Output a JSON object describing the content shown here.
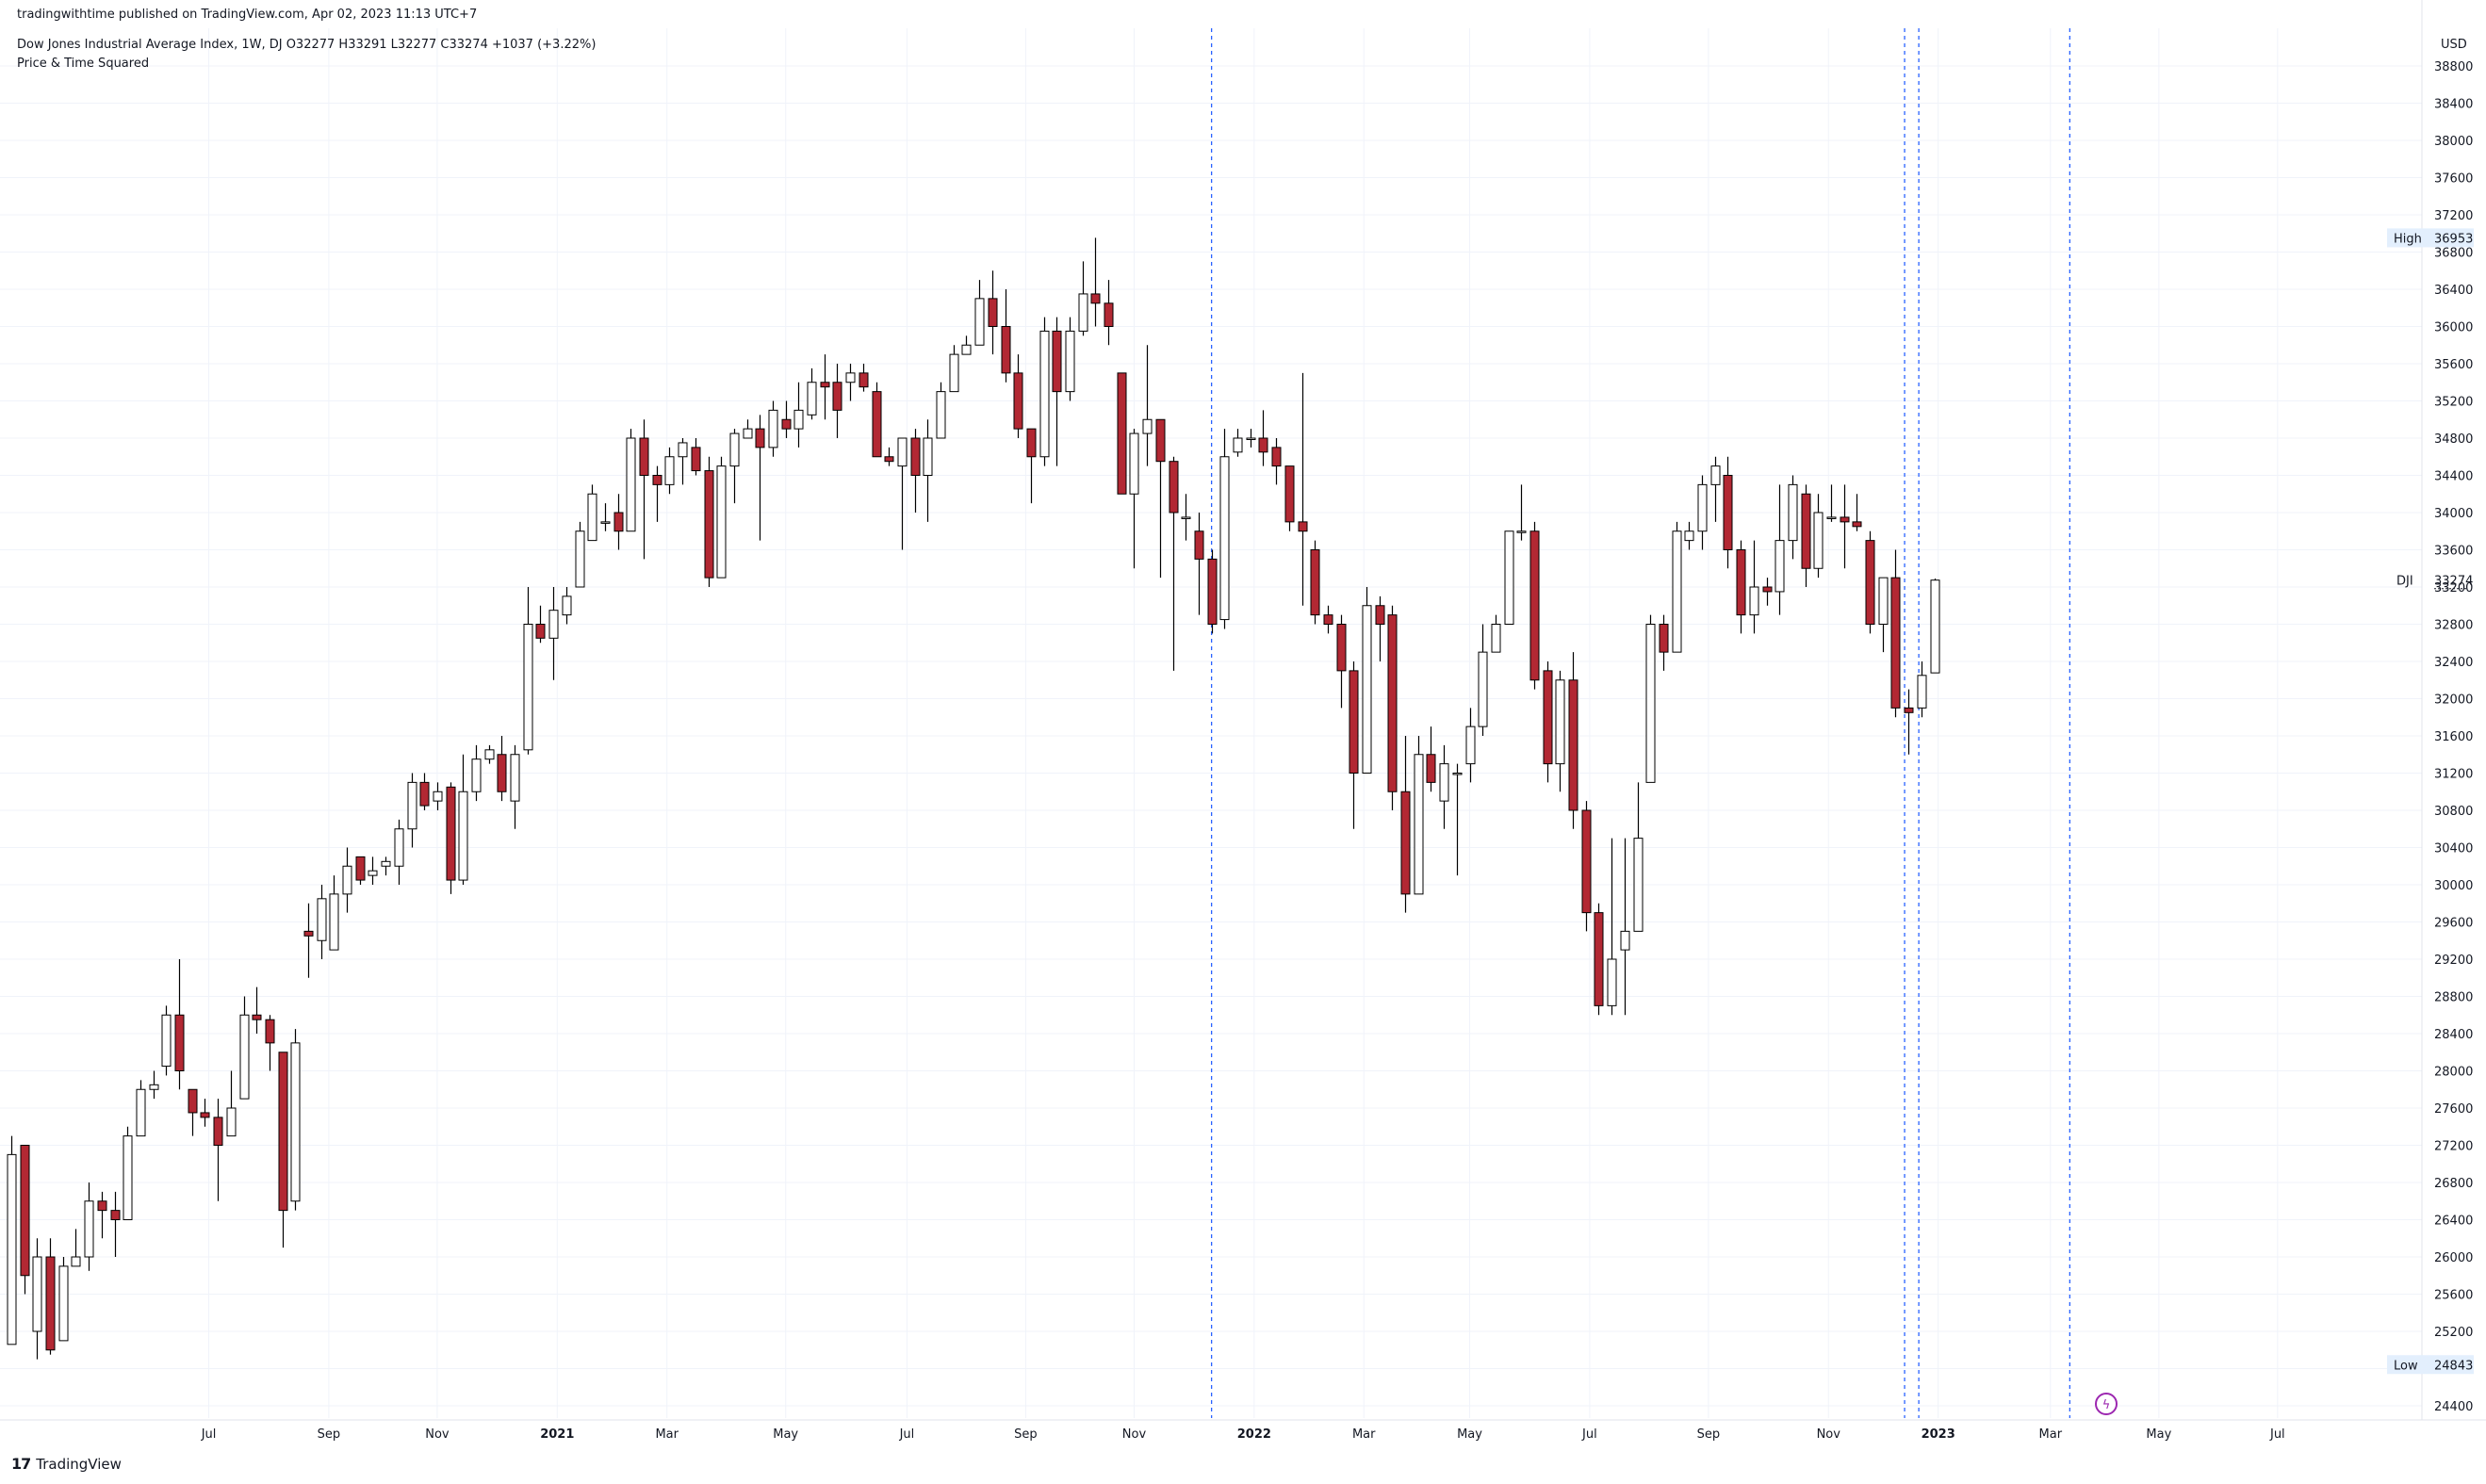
{
  "header": {
    "published": "tradingwithtime published on TradingView.com, Apr 02, 2023 11:13 UTC+7",
    "symbol_line": "Dow Jones Industrial Average Index, 1W, DJ  O32277  H33291  L32277  C33274  +1037 (+3.22%)",
    "indicator": "Price & Time Squared"
  },
  "branding": {
    "logo_icon": "tradingview-logo-icon",
    "text": "TradingView"
  },
  "colors": {
    "up_fill": "#ffffff",
    "down_fill": "#b22833",
    "wick": "#000000",
    "grid": "#f0f3fa",
    "vline": "#2962ff",
    "badge": "#e3effd"
  },
  "chart_data": {
    "type": "candlestick",
    "timeframe": "1W",
    "currency": "USD",
    "symbol": "DJI",
    "ylim": [
      24200,
      39000
    ],
    "y_ticks": [
      24400,
      24800,
      25200,
      25600,
      26000,
      26400,
      26800,
      27200,
      27600,
      28000,
      28400,
      28800,
      29200,
      29600,
      30000,
      30400,
      30800,
      31200,
      31600,
      32000,
      32400,
      32800,
      33200,
      33600,
      34000,
      34400,
      34800,
      35200,
      35600,
      36000,
      36400,
      36800,
      37200,
      37600,
      38000,
      38400,
      38800
    ],
    "x_ticks": [
      {
        "label": "Jul",
        "pos": 15.3,
        "bold": false
      },
      {
        "label": "Sep",
        "pos": 24.6,
        "bold": false
      },
      {
        "label": "Nov",
        "pos": 33.0,
        "bold": false
      },
      {
        "label": "2021",
        "pos": 42.3,
        "bold": true
      },
      {
        "label": "Mar",
        "pos": 50.8,
        "bold": false
      },
      {
        "label": "May",
        "pos": 60.0,
        "bold": false
      },
      {
        "label": "Jul",
        "pos": 69.4,
        "bold": false
      },
      {
        "label": "Sep",
        "pos": 78.6,
        "bold": false
      },
      {
        "label": "Nov",
        "pos": 87.0,
        "bold": false
      },
      {
        "label": "2022",
        "pos": 96.3,
        "bold": true
      },
      {
        "label": "Mar",
        "pos": 104.8,
        "bold": false
      },
      {
        "label": "May",
        "pos": 113.0,
        "bold": false
      },
      {
        "label": "Jul",
        "pos": 122.3,
        "bold": false
      },
      {
        "label": "Sep",
        "pos": 131.5,
        "bold": false
      },
      {
        "label": "Nov",
        "pos": 140.8,
        "bold": false
      },
      {
        "label": "2023",
        "pos": 149.3,
        "bold": true
      },
      {
        "label": "Mar",
        "pos": 158.0,
        "bold": false
      },
      {
        "label": "May",
        "pos": 166.4,
        "bold": false
      },
      {
        "label": "Jul",
        "pos": 175.6,
        "bold": false
      }
    ],
    "vertical_markers": [
      93.0,
      146.7,
      147.8,
      159.5
    ],
    "high_label": {
      "text": "High",
      "value": 36953
    },
    "low_label": {
      "text": "Low",
      "value": 24843
    },
    "last_price": {
      "label": "DJI",
      "value": 33274
    },
    "bars": [
      [
        25060,
        27100,
        25200,
        27300
      ],
      [
        27200,
        25800,
        25600,
        27200
      ],
      [
        25200,
        26000,
        24900,
        26200
      ],
      [
        26000,
        25000,
        24950,
        26200
      ],
      [
        25100,
        25900,
        25100,
        26000
      ],
      [
        25900,
        26000,
        25900,
        26300
      ],
      [
        26000,
        26600,
        25850,
        26800
      ],
      [
        26600,
        26500,
        26200,
        26700
      ],
      [
        26500,
        26400,
        26000,
        26700
      ],
      [
        26400,
        27300,
        26400,
        27400
      ],
      [
        27300,
        27800,
        27300,
        27900
      ],
      [
        27800,
        27850,
        27700,
        28000
      ],
      [
        28050,
        28600,
        27950,
        28700
      ],
      [
        28600,
        28000,
        27800,
        29200
      ],
      [
        27800,
        27550,
        27300,
        27800
      ],
      [
        27550,
        27500,
        27400,
        27700
      ],
      [
        27500,
        27200,
        26600,
        27700
      ],
      [
        27300,
        27600,
        27300,
        28000
      ],
      [
        27700,
        28600,
        27700,
        28800
      ],
      [
        28600,
        28550,
        28400,
        28900
      ],
      [
        28550,
        28300,
        28000,
        28600
      ],
      [
        28200,
        26500,
        26100,
        28200
      ],
      [
        26600,
        28300,
        26500,
        28450
      ],
      [
        29500,
        29450,
        29000,
        29800
      ],
      [
        29400,
        29850,
        29200,
        30000
      ],
      [
        29300,
        29900,
        29300,
        30100
      ],
      [
        29900,
        30200,
        29700,
        30400
      ],
      [
        30300,
        30050,
        30000,
        30300
      ],
      [
        30100,
        30150,
        30000,
        30300
      ],
      [
        30200,
        30250,
        30100,
        30300
      ],
      [
        30200,
        30600,
        30000,
        30700
      ],
      [
        30600,
        31100,
        30400,
        31200
      ],
      [
        31100,
        30850,
        30800,
        31200
      ],
      [
        30900,
        31000,
        30800,
        31100
      ],
      [
        31050,
        30050,
        29900,
        31100
      ],
      [
        30050,
        31000,
        30000,
        31400
      ],
      [
        31000,
        31350,
        30900,
        31500
      ],
      [
        31350,
        31450,
        31300,
        31500
      ],
      [
        31400,
        31000,
        30900,
        31600
      ],
      [
        30900,
        31400,
        30600,
        31500
      ],
      [
        31450,
        32800,
        31400,
        33200
      ],
      [
        32800,
        32650,
        32600,
        33000
      ],
      [
        32650,
        32950,
        32200,
        33200
      ],
      [
        32900,
        33100,
        32800,
        33200
      ],
      [
        33200,
        33800,
        33200,
        33900
      ],
      [
        33700,
        34200,
        33700,
        34300
      ],
      [
        33900,
        33900,
        33800,
        34100
      ],
      [
        34000,
        33800,
        33600,
        34200
      ],
      [
        33800,
        34800,
        33800,
        34900
      ],
      [
        34800,
        34400,
        33500,
        35000
      ],
      [
        34400,
        34300,
        33900,
        34500
      ],
      [
        34300,
        34600,
        34200,
        34700
      ],
      [
        34600,
        34750,
        34300,
        34800
      ],
      [
        34700,
        34450,
        34400,
        34800
      ],
      [
        34450,
        33300,
        33200,
        34600
      ],
      [
        33300,
        34500,
        33300,
        34600
      ],
      [
        34500,
        34850,
        34100,
        34900
      ],
      [
        34800,
        34900,
        34800,
        35000
      ],
      [
        34900,
        34700,
        33700,
        35050
      ],
      [
        34700,
        35100,
        34600,
        35200
      ],
      [
        35000,
        34900,
        34800,
        35200
      ],
      [
        34900,
        35100,
        34700,
        35400
      ],
      [
        35050,
        35400,
        35000,
        35550
      ],
      [
        35400,
        35350,
        35000,
        35700
      ],
      [
        35400,
        35100,
        34800,
        35600
      ],
      [
        35400,
        35500,
        35200,
        35600
      ],
      [
        35500,
        35350,
        35300,
        35600
      ],
      [
        35300,
        34600,
        34600,
        35400
      ],
      [
        34600,
        34550,
        34500,
        34700
      ],
      [
        34500,
        34800,
        33600,
        34800
      ],
      [
        34800,
        34400,
        34000,
        34900
      ],
      [
        34400,
        34800,
        33900,
        35000
      ],
      [
        34800,
        35300,
        34800,
        35400
      ],
      [
        35300,
        35700,
        35300,
        35800
      ],
      [
        35700,
        35800,
        35700,
        35900
      ],
      [
        35800,
        36300,
        35800,
        36500
      ],
      [
        36300,
        36000,
        35700,
        36600
      ],
      [
        36000,
        35500,
        35400,
        36400
      ],
      [
        35500,
        34900,
        34800,
        35700
      ],
      [
        34900,
        34600,
        34100,
        34900
      ],
      [
        34600,
        35950,
        34500,
        36100
      ],
      [
        35950,
        35300,
        34500,
        36100
      ],
      [
        35300,
        35950,
        35200,
        36100
      ],
      [
        35950,
        36350,
        35900,
        36700
      ],
      [
        36350,
        36250,
        36000,
        36953
      ],
      [
        36250,
        36000,
        35800,
        36500
      ],
      [
        35500,
        34200,
        34200,
        35500
      ],
      [
        34200,
        34850,
        33400,
        34900
      ],
      [
        34850,
        35000,
        34500,
        35800
      ],
      [
        35000,
        34550,
        33300,
        35000
      ],
      [
        34550,
        34000,
        32300,
        34600
      ],
      [
        33950,
        33950,
        33700,
        34200
      ],
      [
        33800,
        33500,
        32900,
        34000
      ],
      [
        33500,
        32800,
        32700,
        33600
      ],
      [
        32850,
        34600,
        32750,
        34900
      ],
      [
        34650,
        34800,
        34600,
        34900
      ],
      [
        34800,
        34800,
        34700,
        34900
      ],
      [
        34800,
        34650,
        34500,
        35100
      ],
      [
        34700,
        34500,
        34300,
        34800
      ],
      [
        34500,
        33900,
        33800,
        34500
      ],
      [
        33900,
        33800,
        33000,
        35500
      ],
      [
        33600,
        32900,
        32800,
        33700
      ],
      [
        32900,
        32800,
        32700,
        33000
      ],
      [
        32800,
        32300,
        31900,
        32900
      ],
      [
        32300,
        31200,
        30600,
        32400
      ],
      [
        31200,
        33000,
        31200,
        33200
      ],
      [
        33000,
        32800,
        32400,
        33100
      ],
      [
        32900,
        31000,
        30800,
        33000
      ],
      [
        31000,
        29900,
        29700,
        31600
      ],
      [
        29900,
        31400,
        29900,
        31600
      ],
      [
        31400,
        31100,
        31000,
        31700
      ],
      [
        30900,
        31300,
        30600,
        31500
      ],
      [
        31200,
        31200,
        30100,
        31300
      ],
      [
        31300,
        31700,
        31100,
        31900
      ],
      [
        31700,
        32500,
        31600,
        32800
      ],
      [
        32500,
        32800,
        32500,
        32900
      ],
      [
        32800,
        33800,
        32800,
        33800
      ],
      [
        33800,
        33800,
        33700,
        34300
      ],
      [
        33800,
        32200,
        32100,
        33900
      ],
      [
        32300,
        31300,
        31100,
        32400
      ],
      [
        31300,
        32200,
        31000,
        32300
      ],
      [
        32200,
        30800,
        30600,
        32500
      ],
      [
        30800,
        29700,
        29500,
        30900
      ],
      [
        29700,
        28700,
        28600,
        29800
      ],
      [
        28700,
        29200,
        28600,
        30500
      ],
      [
        29300,
        29500,
        28600,
        30500
      ],
      [
        29500,
        30500,
        29500,
        31100
      ],
      [
        31100,
        32800,
        31100,
        32900
      ],
      [
        32800,
        32500,
        32300,
        32900
      ],
      [
        32500,
        33800,
        32500,
        33900
      ],
      [
        33700,
        33800,
        33600,
        33900
      ],
      [
        33800,
        34300,
        33600,
        34400
      ],
      [
        34300,
        34500,
        33900,
        34600
      ],
      [
        34400,
        33600,
        33400,
        34600
      ],
      [
        33600,
        32900,
        32700,
        33700
      ],
      [
        32900,
        33200,
        32700,
        33700
      ],
      [
        33200,
        33150,
        33000,
        33300
      ],
      [
        33150,
        33700,
        32900,
        34300
      ],
      [
        33700,
        34300,
        33500,
        34400
      ],
      [
        34200,
        33400,
        33200,
        34300
      ],
      [
        33400,
        34000,
        33300,
        34200
      ],
      [
        33950,
        33950,
        33900,
        34300
      ],
      [
        33950,
        33900,
        33400,
        34300
      ],
      [
        33900,
        33850,
        33800,
        34200
      ],
      [
        33700,
        32800,
        32700,
        33800
      ],
      [
        32800,
        33300,
        32500,
        33300
      ],
      [
        33300,
        31900,
        31800,
        33600
      ],
      [
        31900,
        31850,
        31400,
        32100
      ],
      [
        31900,
        32250,
        31800,
        32400
      ],
      [
        32277,
        33274,
        32277,
        33291
      ]
    ]
  }
}
